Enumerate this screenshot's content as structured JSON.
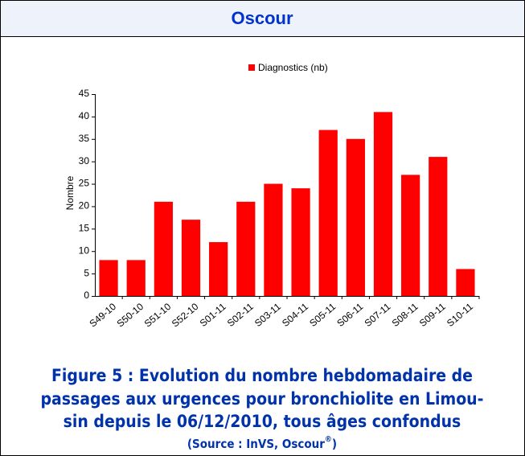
{
  "header": "Oscour",
  "chart_data": {
    "type": "bar",
    "legend": "Diagnostics (nb)",
    "ylabel": "Nombre",
    "categories": [
      "S49-10",
      "S50-10",
      "S51-10",
      "S52-10",
      "S01-11",
      "S02-11",
      "S03-11",
      "S04-11",
      "S05-11",
      "S06-11",
      "S07-11",
      "S08-11",
      "S09-11",
      "S10-11"
    ],
    "values": [
      8,
      8,
      21,
      17,
      12,
      21,
      25,
      24,
      37,
      35,
      41,
      27,
      31,
      6
    ],
    "color": "#ff0000",
    "ylim": [
      0,
      45
    ],
    "yticks": [
      0,
      5,
      10,
      15,
      20,
      25,
      30,
      35,
      40,
      45
    ]
  },
  "caption": [
    "Figure 5 : Evolution du nombre hebdomadaire de",
    "passages aux urgences pour bronchiolite en Limou-",
    "sin depuis le 06/12/2010, tous âges confondus"
  ],
  "source": [
    "(Source : InVS, Oscour",
    "®",
    ")"
  ]
}
